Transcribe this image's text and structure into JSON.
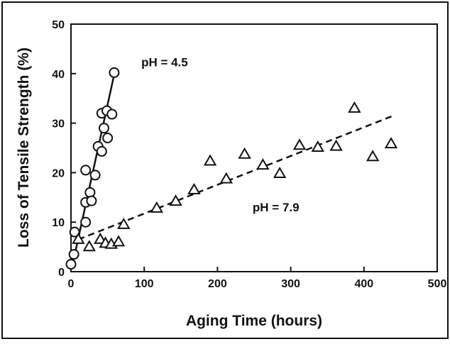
{
  "chart_data": {
    "type": "scatter",
    "title": "",
    "xlabel": "Aging Time  (hours)",
    "ylabel": "Loss of Tensile Strength  (%)",
    "xlim": [
      0,
      500
    ],
    "ylim": [
      0,
      50
    ],
    "x_ticks": [
      "0",
      "100",
      "200",
      "300",
      "400",
      "500"
    ],
    "y_ticks": [
      "0",
      "10",
      "20",
      "30",
      "40",
      "50"
    ],
    "grid": false,
    "legend": "none",
    "series": [
      {
        "name": "pH = 4.5",
        "marker": "circle",
        "fit_line": "solid",
        "fit_endpoints": [
          [
            3,
            2
          ],
          [
            60,
            40.5
          ]
        ],
        "points": [
          [
            0,
            1.5
          ],
          [
            4,
            3.5
          ],
          [
            5,
            8
          ],
          [
            20,
            10
          ],
          [
            20,
            14
          ],
          [
            20,
            20.5
          ],
          [
            26,
            16
          ],
          [
            28,
            14.3
          ],
          [
            33,
            19.5
          ],
          [
            37,
            25.3
          ],
          [
            42,
            24.3
          ],
          [
            42,
            32
          ],
          [
            45,
            29
          ],
          [
            49,
            32.5
          ],
          [
            50,
            27
          ],
          [
            56,
            31.8
          ],
          [
            59,
            40.2
          ]
        ]
      },
      {
        "name": "pH = 7.9",
        "marker": "triangle",
        "fit_line": "dashed",
        "fit_endpoints": [
          [
            10,
            6.5
          ],
          [
            440,
            31.5
          ]
        ],
        "points": [
          [
            10,
            6.5
          ],
          [
            25,
            5
          ],
          [
            40,
            6.5
          ],
          [
            47,
            5.7
          ],
          [
            55,
            5.5
          ],
          [
            65,
            6
          ],
          [
            72,
            9.5
          ],
          [
            117,
            12.8
          ],
          [
            143,
            14.2
          ],
          [
            168,
            16.5
          ],
          [
            190,
            22.3
          ],
          [
            212,
            18.7
          ],
          [
            237,
            23.7
          ],
          [
            262,
            21.5
          ],
          [
            285,
            19.8
          ],
          [
            312,
            25.5
          ],
          [
            337,
            25.1
          ],
          [
            362,
            25.3
          ],
          [
            387,
            33
          ],
          [
            412,
            23.2
          ],
          [
            437,
            25.8
          ]
        ]
      }
    ],
    "annotations": [
      {
        "text": "pH = 4.5",
        "x": 96,
        "y": 41.5
      },
      {
        "text": "pH = 7.9",
        "x": 248,
        "y": 12.2
      }
    ],
    "colors": {
      "ink": "#111111",
      "background": "#ffffff"
    }
  }
}
